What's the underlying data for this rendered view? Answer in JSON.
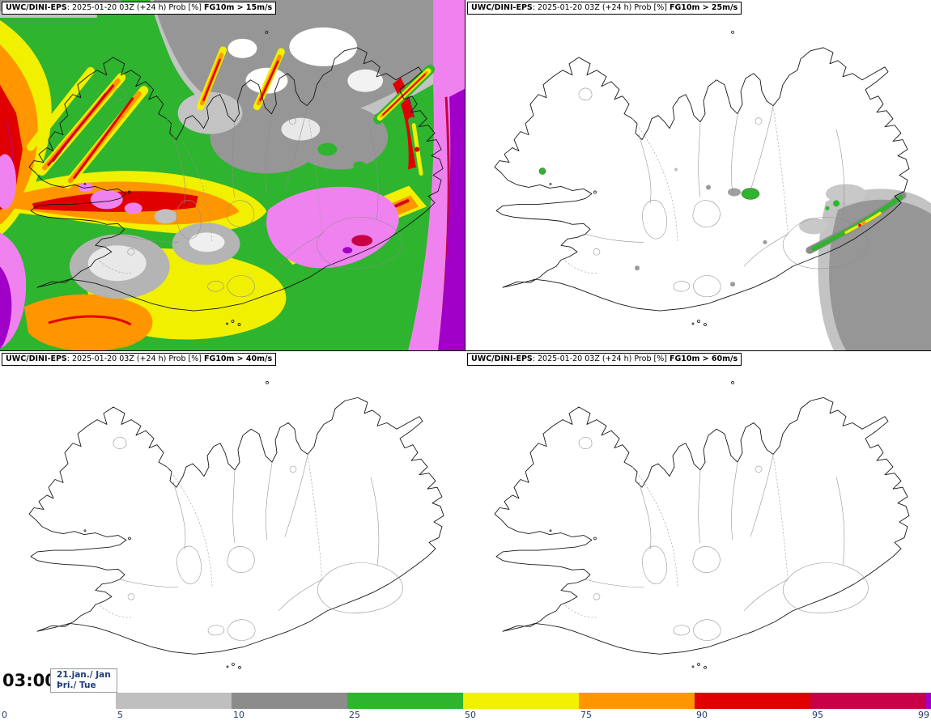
{
  "panels": [
    {
      "model": "UWC/DINI-EPS",
      "meta": ": 2025-01-20 03Z (+24 h) Prob [%] ",
      "threshold": "FG10m > 15m/s"
    },
    {
      "model": "UWC/DINI-EPS",
      "meta": ": 2025-01-20 03Z (+24 h) Prob [%] ",
      "threshold": "FG10m > 25m/s"
    },
    {
      "model": "UWC/DINI-EPS",
      "meta": ": 2025-01-20 03Z (+24 h) Prob [%] ",
      "threshold": "FG10m > 40m/s"
    },
    {
      "model": "UWC/DINI-EPS",
      "meta": ": 2025-01-20 03Z (+24 h) Prob [%] ",
      "threshold": "FG10m > 60m/s"
    }
  ],
  "footer": {
    "time": "03:00",
    "date_line1": "21.jan./ Jan",
    "date_line2": "Þri./ Tue"
  },
  "colorbar": {
    "segments": [
      {
        "label": "0",
        "color": "#ffffff"
      },
      {
        "label": "5",
        "color": "#bfbfbf"
      },
      {
        "label": "10",
        "color": "#8c8c8c"
      },
      {
        "label": "25",
        "color": "#2eb42e"
      },
      {
        "label": "50",
        "color": "#f0f000"
      },
      {
        "label": "75",
        "color": "#ff9600"
      },
      {
        "label": "90",
        "color": "#e10000"
      },
      {
        "label": "95",
        "color": "#c80046"
      },
      {
        "label": "99",
        "color": "#a000c8"
      }
    ]
  }
}
